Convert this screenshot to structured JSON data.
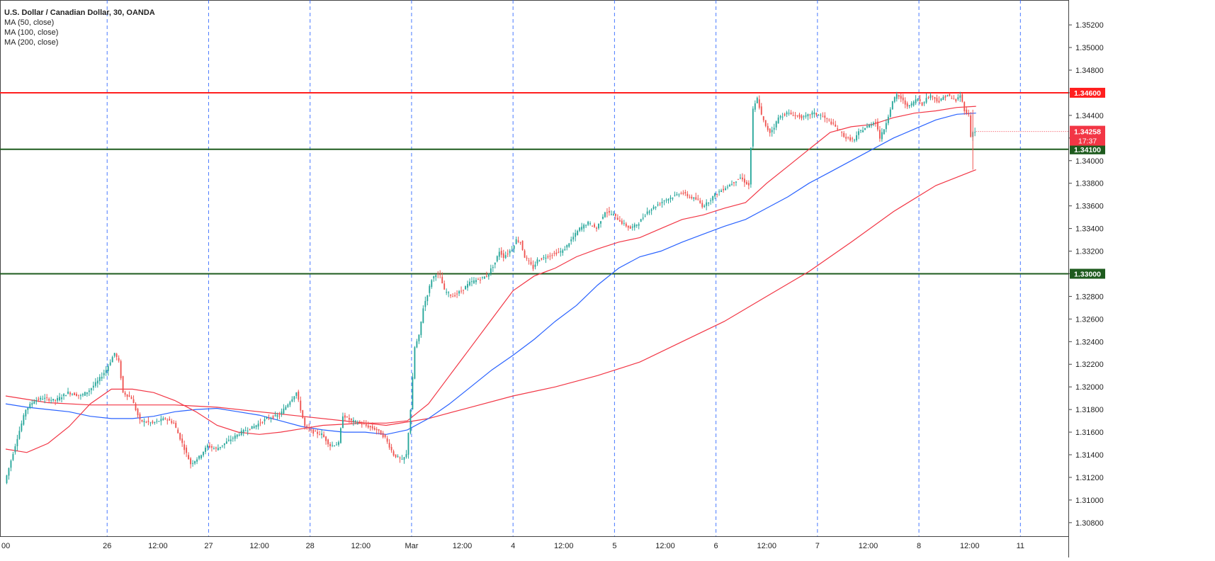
{
  "chart_data": {
    "type": "candlestick",
    "title": "U.S. Dollar / Canadian Dollar, 30, OANDA",
    "symbol": "USDCAD",
    "timeframe": "30",
    "source": "OANDA",
    "indicators": [
      {
        "label": "MA (50, close)",
        "color": "#f23645"
      },
      {
        "label": "MA (100, close)",
        "color": "#2962ff"
      },
      {
        "label": "MA (200, close)",
        "color": "#f23645"
      }
    ],
    "ylim": [
      1.3068,
      1.3542
    ],
    "y_ticks": [
      "1.35200",
      "1.35000",
      "1.34800",
      "1.34600",
      "1.34400",
      "1.34200",
      "1.34000",
      "1.33800",
      "1.33600",
      "1.33400",
      "1.33200",
      "1.33000",
      "1.32800",
      "1.32600",
      "1.32400",
      "1.32200",
      "1.32000",
      "1.31800",
      "1.31600",
      "1.31400",
      "1.31200",
      "1.31000",
      "1.30800"
    ],
    "x_labels": [
      {
        "label": "00",
        "x": 0.0
      },
      {
        "label": "26",
        "x": 48
      },
      {
        "label": "12:00",
        "x": 72
      },
      {
        "label": "27",
        "x": 96
      },
      {
        "label": "12:00",
        "x": 120
      },
      {
        "label": "28",
        "x": 144
      },
      {
        "label": "12:00",
        "x": 168
      },
      {
        "label": "Mar",
        "x": 192
      },
      {
        "label": "12:00",
        "x": 216
      },
      {
        "label": "4",
        "x": 240
      },
      {
        "label": "12:00",
        "x": 264
      },
      {
        "label": "5",
        "x": 288
      },
      {
        "label": "12:00",
        "x": 312
      },
      {
        "label": "6",
        "x": 336
      },
      {
        "label": "12:00",
        "x": 360
      },
      {
        "label": "7",
        "x": 384
      },
      {
        "label": "12:00",
        "x": 408
      },
      {
        "label": "8",
        "x": 432
      },
      {
        "label": "12:00",
        "x": 456
      },
      {
        "label": "11",
        "x": 480
      }
    ],
    "x_index_range": [
      0,
      500
    ],
    "horizontal_levels": [
      {
        "value": 1.346,
        "label": "1.34600",
        "color": "#ff1f1f"
      },
      {
        "value": 1.341,
        "label": "1.34100",
        "color": "#1e5b1e"
      },
      {
        "value": 1.33,
        "label": "1.33000",
        "color": "#1e5b1e"
      }
    ],
    "price_label": {
      "value": 1.34258,
      "label": "1.34258",
      "countdown": "17:37",
      "color": "#f23645"
    },
    "up_color": "#26a69a",
    "down_color": "#ef5350",
    "price_path": [
      [
        0,
        1.3115
      ],
      [
        6,
        1.3155
      ],
      [
        10,
        1.318
      ],
      [
        14,
        1.3188
      ],
      [
        18,
        1.319
      ],
      [
        24,
        1.3188
      ],
      [
        30,
        1.3195
      ],
      [
        36,
        1.3192
      ],
      [
        40,
        1.3197
      ],
      [
        44,
        1.3205
      ],
      [
        48,
        1.3215
      ],
      [
        52,
        1.323
      ],
      [
        54,
        1.3222
      ],
      [
        56,
        1.3195
      ],
      [
        60,
        1.319
      ],
      [
        64,
        1.317
      ],
      [
        70,
        1.3168
      ],
      [
        76,
        1.3172
      ],
      [
        80,
        1.3168
      ],
      [
        84,
        1.315
      ],
      [
        88,
        1.3132
      ],
      [
        92,
        1.3138
      ],
      [
        96,
        1.3148
      ],
      [
        100,
        1.3145
      ],
      [
        104,
        1.315
      ],
      [
        108,
        1.3155
      ],
      [
        112,
        1.316
      ],
      [
        118,
        1.3165
      ],
      [
        124,
        1.3172
      ],
      [
        130,
        1.3175
      ],
      [
        134,
        1.3185
      ],
      [
        138,
        1.3195
      ],
      [
        142,
        1.3165
      ],
      [
        146,
        1.316
      ],
      [
        150,
        1.3158
      ],
      [
        154,
        1.3148
      ],
      [
        158,
        1.315
      ],
      [
        160,
        1.3175
      ],
      [
        164,
        1.317
      ],
      [
        168,
        1.3168
      ],
      [
        172,
        1.3165
      ],
      [
        176,
        1.3162
      ],
      [
        180,
        1.3155
      ],
      [
        184,
        1.314
      ],
      [
        188,
        1.3135
      ],
      [
        190,
        1.314
      ],
      [
        192,
        1.318
      ],
      [
        194,
        1.3235
      ],
      [
        196,
        1.3245
      ],
      [
        198,
        1.327
      ],
      [
        200,
        1.3282
      ],
      [
        202,
        1.3295
      ],
      [
        204,
        1.33
      ],
      [
        206,
        1.3298
      ],
      [
        208,
        1.3285
      ],
      [
        212,
        1.328
      ],
      [
        216,
        1.3285
      ],
      [
        220,
        1.3292
      ],
      [
        224,
        1.3295
      ],
      [
        228,
        1.3298
      ],
      [
        232,
        1.331
      ],
      [
        234,
        1.332
      ],
      [
        236,
        1.3315
      ],
      [
        240,
        1.3322
      ],
      [
        242,
        1.333
      ],
      [
        244,
        1.3328
      ],
      [
        246,
        1.3315
      ],
      [
        248,
        1.331
      ],
      [
        250,
        1.3305
      ],
      [
        252,
        1.3312
      ],
      [
        256,
        1.3315
      ],
      [
        260,
        1.3318
      ],
      [
        264,
        1.332
      ],
      [
        268,
        1.333
      ],
      [
        272,
        1.334
      ],
      [
        276,
        1.3345
      ],
      [
        280,
        1.334
      ],
      [
        284,
        1.3355
      ],
      [
        288,
        1.3352
      ],
      [
        292,
        1.3345
      ],
      [
        296,
        1.334
      ],
      [
        300,
        1.3345
      ],
      [
        304,
        1.3355
      ],
      [
        308,
        1.336
      ],
      [
        312,
        1.3365
      ],
      [
        316,
        1.3368
      ],
      [
        320,
        1.3372
      ],
      [
        324,
        1.3368
      ],
      [
        328,
        1.3365
      ],
      [
        330,
        1.336
      ],
      [
        332,
        1.3362
      ],
      [
        336,
        1.337
      ],
      [
        340,
        1.3375
      ],
      [
        344,
        1.338
      ],
      [
        348,
        1.3385
      ],
      [
        352,
        1.3378
      ],
      [
        354,
        1.3445
      ],
      [
        356,
        1.3455
      ],
      [
        358,
        1.344
      ],
      [
        360,
        1.343
      ],
      [
        362,
        1.3425
      ],
      [
        364,
        1.343
      ],
      [
        366,
        1.3438
      ],
      [
        370,
        1.3442
      ],
      [
        374,
        1.344
      ],
      [
        378,
        1.3438
      ],
      [
        382,
        1.3442
      ],
      [
        386,
        1.344
      ],
      [
        390,
        1.3435
      ],
      [
        394,
        1.3428
      ],
      [
        398,
        1.342
      ],
      [
        402,
        1.3418
      ],
      [
        404,
        1.3425
      ],
      [
        408,
        1.343
      ],
      [
        412,
        1.3435
      ],
      [
        414,
        1.342
      ],
      [
        416,
        1.3428
      ],
      [
        418,
        1.344
      ],
      [
        420,
        1.3452
      ],
      [
        422,
        1.3458
      ],
      [
        424,
        1.3455
      ],
      [
        426,
        1.345
      ],
      [
        428,
        1.3448
      ],
      [
        430,
        1.3452
      ],
      [
        432,
        1.3455
      ],
      [
        434,
        1.345
      ],
      [
        436,
        1.3455
      ],
      [
        438,
        1.3458
      ],
      [
        440,
        1.3455
      ],
      [
        442,
        1.3452
      ],
      [
        444,
        1.3456
      ],
      [
        446,
        1.3458
      ],
      [
        448,
        1.3455
      ],
      [
        450,
        1.3453
      ],
      [
        452,
        1.3458
      ],
      [
        454,
        1.3445
      ],
      [
        456,
        1.344
      ],
      [
        457,
        1.3422
      ],
      [
        458,
        1.3425
      ],
      [
        459,
        1.3426
      ]
    ],
    "ma50_path": [
      [
        0,
        1.3145
      ],
      [
        10,
        1.3142
      ],
      [
        20,
        1.315
      ],
      [
        30,
        1.3165
      ],
      [
        40,
        1.3185
      ],
      [
        50,
        1.3198
      ],
      [
        60,
        1.3198
      ],
      [
        70,
        1.3195
      ],
      [
        80,
        1.3188
      ],
      [
        90,
        1.3178
      ],
      [
        100,
        1.3166
      ],
      [
        110,
        1.316
      ],
      [
        120,
        1.3158
      ],
      [
        130,
        1.316
      ],
      [
        140,
        1.3163
      ],
      [
        150,
        1.3166
      ],
      [
        160,
        1.3167
      ],
      [
        170,
        1.3168
      ],
      [
        180,
        1.3168
      ],
      [
        190,
        1.317
      ],
      [
        200,
        1.3185
      ],
      [
        210,
        1.321
      ],
      [
        220,
        1.3235
      ],
      [
        230,
        1.326
      ],
      [
        240,
        1.3285
      ],
      [
        250,
        1.3298
      ],
      [
        260,
        1.3305
      ],
      [
        270,
        1.3315
      ],
      [
        280,
        1.3322
      ],
      [
        290,
        1.3328
      ],
      [
        300,
        1.3332
      ],
      [
        310,
        1.334
      ],
      [
        320,
        1.3348
      ],
      [
        330,
        1.3352
      ],
      [
        340,
        1.3358
      ],
      [
        350,
        1.3363
      ],
      [
        360,
        1.338
      ],
      [
        370,
        1.3395
      ],
      [
        380,
        1.341
      ],
      [
        390,
        1.3425
      ],
      [
        400,
        1.343
      ],
      [
        410,
        1.3432
      ],
      [
        420,
        1.3438
      ],
      [
        430,
        1.3442
      ],
      [
        440,
        1.3444
      ],
      [
        450,
        1.3447
      ],
      [
        459,
        1.3448
      ]
    ],
    "ma100_path": [
      [
        0,
        1.3185
      ],
      [
        10,
        1.3182
      ],
      [
        20,
        1.318
      ],
      [
        30,
        1.3178
      ],
      [
        40,
        1.3174
      ],
      [
        50,
        1.3172
      ],
      [
        60,
        1.3172
      ],
      [
        70,
        1.3174
      ],
      [
        80,
        1.3178
      ],
      [
        90,
        1.318
      ],
      [
        100,
        1.3181
      ],
      [
        110,
        1.3178
      ],
      [
        120,
        1.3175
      ],
      [
        130,
        1.317
      ],
      [
        140,
        1.3165
      ],
      [
        150,
        1.3162
      ],
      [
        160,
        1.316
      ],
      [
        170,
        1.316
      ],
      [
        180,
        1.3158
      ],
      [
        190,
        1.3162
      ],
      [
        200,
        1.3172
      ],
      [
        210,
        1.3185
      ],
      [
        220,
        1.32
      ],
      [
        230,
        1.3215
      ],
      [
        240,
        1.3228
      ],
      [
        250,
        1.3242
      ],
      [
        260,
        1.3258
      ],
      [
        270,
        1.3272
      ],
      [
        280,
        1.329
      ],
      [
        290,
        1.3305
      ],
      [
        300,
        1.3315
      ],
      [
        310,
        1.332
      ],
      [
        320,
        1.3328
      ],
      [
        330,
        1.3335
      ],
      [
        340,
        1.3342
      ],
      [
        350,
        1.3348
      ],
      [
        360,
        1.3358
      ],
      [
        370,
        1.3368
      ],
      [
        380,
        1.338
      ],
      [
        390,
        1.339
      ],
      [
        400,
        1.34
      ],
      [
        410,
        1.341
      ],
      [
        420,
        1.342
      ],
      [
        430,
        1.3428
      ],
      [
        440,
        1.3436
      ],
      [
        450,
        1.3441
      ],
      [
        459,
        1.3442
      ]
    ],
    "ma200_path": [
      [
        0,
        1.3192
      ],
      [
        20,
        1.3186
      ],
      [
        40,
        1.3184
      ],
      [
        60,
        1.3184
      ],
      [
        80,
        1.3184
      ],
      [
        100,
        1.3182
      ],
      [
        120,
        1.3178
      ],
      [
        140,
        1.3174
      ],
      [
        160,
        1.317
      ],
      [
        180,
        1.3166
      ],
      [
        200,
        1.3172
      ],
      [
        220,
        1.3182
      ],
      [
        240,
        1.3192
      ],
      [
        260,
        1.32
      ],
      [
        280,
        1.321
      ],
      [
        300,
        1.3222
      ],
      [
        320,
        1.324
      ],
      [
        340,
        1.3258
      ],
      [
        360,
        1.328
      ],
      [
        380,
        1.3302
      ],
      [
        400,
        1.3328
      ],
      [
        420,
        1.3355
      ],
      [
        440,
        1.3378
      ],
      [
        459,
        1.3392
      ]
    ],
    "wick_spike": {
      "x": 457,
      "low": 1.3392,
      "high": 1.3445
    }
  }
}
